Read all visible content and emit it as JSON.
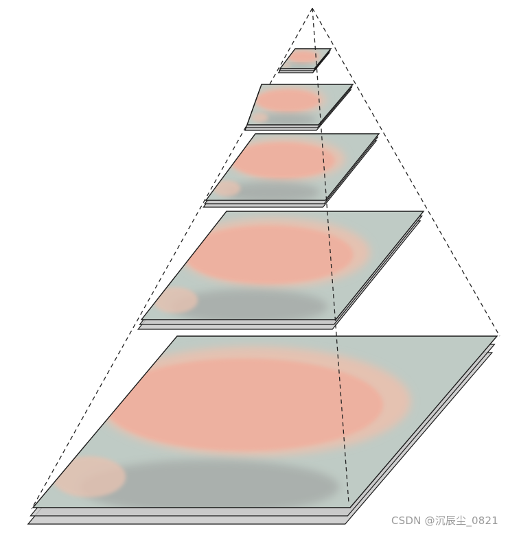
{
  "diagram": {
    "kind": "image-pyramid",
    "level_count": 5,
    "layers_per_level": 3
  },
  "watermark": {
    "text": "CSDN @沉辰尘_0821"
  },
  "colors": {
    "outline": "#1a1a1a",
    "dash_line": "#222222",
    "layer_fill": "#c9c9c9",
    "blob": "#f4a58f",
    "blob_edge": "#e8bba6",
    "shadow": "#7d7d7d",
    "background_tint": "#b8c7bf"
  }
}
